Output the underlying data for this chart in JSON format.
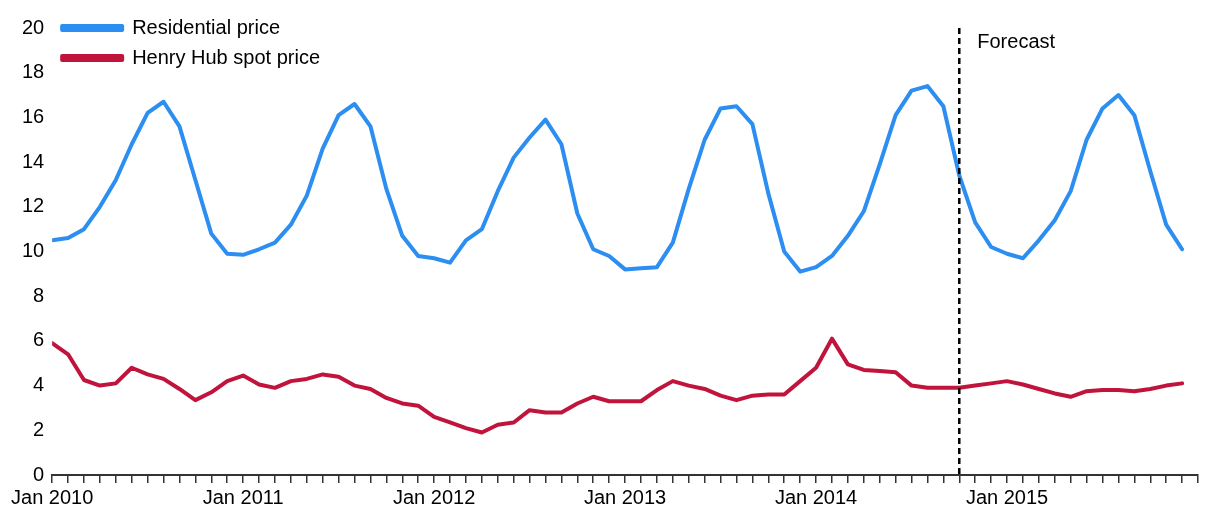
{
  "chart_data": {
    "type": "line",
    "x": [
      "2010-01",
      "2010-02",
      "2010-03",
      "2010-04",
      "2010-05",
      "2010-06",
      "2010-07",
      "2010-08",
      "2010-09",
      "2010-10",
      "2010-11",
      "2010-12",
      "2011-01",
      "2011-02",
      "2011-03",
      "2011-04",
      "2011-05",
      "2011-06",
      "2011-07",
      "2011-08",
      "2011-09",
      "2011-10",
      "2011-11",
      "2011-12",
      "2012-01",
      "2012-02",
      "2012-03",
      "2012-04",
      "2012-05",
      "2012-06",
      "2012-07",
      "2012-08",
      "2012-09",
      "2012-10",
      "2012-11",
      "2012-12",
      "2013-01",
      "2013-02",
      "2013-03",
      "2013-04",
      "2013-05",
      "2013-06",
      "2013-07",
      "2013-08",
      "2013-09",
      "2013-10",
      "2013-11",
      "2013-12",
      "2014-01",
      "2014-02",
      "2014-03",
      "2014-04",
      "2014-05",
      "2014-06",
      "2014-07",
      "2014-08",
      "2014-09",
      "2014-10",
      "2014-11",
      "2014-12",
      "2015-01",
      "2015-02",
      "2015-03",
      "2015-04",
      "2015-05",
      "2015-06",
      "2015-07",
      "2015-08",
      "2015-09",
      "2015-10",
      "2015-11",
      "2015-12"
    ],
    "series": [
      {
        "name": "Residential price",
        "color": "#2b8ef0",
        "values": [
          10.5,
          10.6,
          11.0,
          12.0,
          13.2,
          14.8,
          16.2,
          16.7,
          15.6,
          13.2,
          10.8,
          9.9,
          9.85,
          10.1,
          10.4,
          11.2,
          12.5,
          14.6,
          16.1,
          16.6,
          15.6,
          12.8,
          10.7,
          9.8,
          9.7,
          9.5,
          10.5,
          11.0,
          12.7,
          14.2,
          15.1,
          15.9,
          14.8,
          11.7,
          10.1,
          9.8,
          9.2,
          9.25,
          9.3,
          10.4,
          12.8,
          15.0,
          16.4,
          16.5,
          15.7,
          12.6,
          10.0,
          9.1,
          9.3,
          9.8,
          10.7,
          11.8,
          13.9,
          16.1,
          17.2,
          17.4,
          16.5,
          13.4,
          11.3,
          10.2,
          9.9,
          9.7,
          10.5,
          11.4,
          12.7,
          15.0,
          16.4,
          17.0,
          16.1,
          13.6,
          11.2,
          10.1
        ]
      },
      {
        "name": "Henry Hub spot price",
        "color": "#c0143c",
        "values": [
          5.9,
          5.4,
          4.25,
          4.0,
          4.1,
          4.8,
          4.5,
          4.3,
          3.85,
          3.35,
          3.7,
          4.2,
          4.45,
          4.05,
          3.9,
          4.2,
          4.3,
          4.5,
          4.4,
          4.0,
          3.85,
          3.45,
          3.2,
          3.1,
          2.6,
          2.35,
          2.1,
          1.9,
          2.25,
          2.35,
          2.9,
          2.8,
          2.8,
          3.2,
          3.5,
          3.3,
          3.3,
          3.3,
          3.8,
          4.2,
          4.0,
          3.85,
          3.55,
          3.35,
          3.55,
          3.6,
          3.6,
          4.2,
          4.8,
          6.1,
          4.95,
          4.7,
          4.65,
          4.6,
          4.0,
          3.9,
          3.9,
          3.9,
          4.0,
          4.1,
          4.2,
          4.05,
          3.85,
          3.65,
          3.5,
          3.75,
          3.8,
          3.8,
          3.75,
          3.85,
          4.0,
          4.1
        ]
      }
    ],
    "xlim": [
      "2010-01",
      "2016-01"
    ],
    "xticks": [
      {
        "value": "2010-01",
        "label": "Jan 2010"
      },
      {
        "value": "2010-02",
        "label": null
      },
      {
        "value": "2010-03",
        "label": null
      },
      {
        "value": "2010-04",
        "label": null
      },
      {
        "value": "2010-05",
        "label": null
      },
      {
        "value": "2010-06",
        "label": null
      },
      {
        "value": "2010-07",
        "label": null
      },
      {
        "value": "2010-08",
        "label": null
      },
      {
        "value": "2010-09",
        "label": null
      },
      {
        "value": "2010-10",
        "label": null
      },
      {
        "value": "2010-11",
        "label": null
      },
      {
        "value": "2010-12",
        "label": null
      },
      {
        "value": "2011-01",
        "label": "Jan 2011"
      },
      {
        "value": "2011-02",
        "label": null
      },
      {
        "value": "2011-03",
        "label": null
      },
      {
        "value": "2011-04",
        "label": null
      },
      {
        "value": "2011-05",
        "label": null
      },
      {
        "value": "2011-06",
        "label": null
      },
      {
        "value": "2011-07",
        "label": null
      },
      {
        "value": "2011-08",
        "label": null
      },
      {
        "value": "2011-09",
        "label": null
      },
      {
        "value": "2011-10",
        "label": null
      },
      {
        "value": "2011-11",
        "label": null
      },
      {
        "value": "2011-12",
        "label": null
      },
      {
        "value": "2012-01",
        "label": "Jan 2012"
      },
      {
        "value": "2012-02",
        "label": null
      },
      {
        "value": "2012-03",
        "label": null
      },
      {
        "value": "2012-04",
        "label": null
      },
      {
        "value": "2012-05",
        "label": null
      },
      {
        "value": "2012-06",
        "label": null
      },
      {
        "value": "2012-07",
        "label": null
      },
      {
        "value": "2012-08",
        "label": null
      },
      {
        "value": "2012-09",
        "label": null
      },
      {
        "value": "2012-10",
        "label": null
      },
      {
        "value": "2012-11",
        "label": null
      },
      {
        "value": "2012-12",
        "label": null
      },
      {
        "value": "2013-01",
        "label": "Jan 2013"
      },
      {
        "value": "2013-02",
        "label": null
      },
      {
        "value": "2013-03",
        "label": null
      },
      {
        "value": "2013-04",
        "label": null
      },
      {
        "value": "2013-05",
        "label": null
      },
      {
        "value": "2013-06",
        "label": null
      },
      {
        "value": "2013-07",
        "label": null
      },
      {
        "value": "2013-08",
        "label": null
      },
      {
        "value": "2013-09",
        "label": null
      },
      {
        "value": "2013-10",
        "label": null
      },
      {
        "value": "2013-11",
        "label": null
      },
      {
        "value": "2013-12",
        "label": null
      },
      {
        "value": "2014-01",
        "label": "Jan 2014"
      },
      {
        "value": "2014-02",
        "label": null
      },
      {
        "value": "2014-03",
        "label": null
      },
      {
        "value": "2014-04",
        "label": null
      },
      {
        "value": "2014-05",
        "label": null
      },
      {
        "value": "2014-06",
        "label": null
      },
      {
        "value": "2014-07",
        "label": null
      },
      {
        "value": "2014-08",
        "label": null
      },
      {
        "value": "2014-09",
        "label": null
      },
      {
        "value": "2014-10",
        "label": null
      },
      {
        "value": "2014-11",
        "label": null
      },
      {
        "value": "2014-12",
        "label": null
      },
      {
        "value": "2015-01",
        "label": "Jan 2015"
      },
      {
        "value": "2015-02",
        "label": null
      },
      {
        "value": "2015-03",
        "label": null
      },
      {
        "value": "2015-04",
        "label": null
      },
      {
        "value": "2015-05",
        "label": null
      },
      {
        "value": "2015-06",
        "label": null
      },
      {
        "value": "2015-07",
        "label": null
      },
      {
        "value": "2015-08",
        "label": null
      },
      {
        "value": "2015-09",
        "label": null
      },
      {
        "value": "2015-10",
        "label": null
      },
      {
        "value": "2015-11",
        "label": null
      },
      {
        "value": "2015-12",
        "label": null
      },
      {
        "value": "2016-01",
        "label": null
      }
    ],
    "ylim": [
      0,
      20
    ],
    "yticks": [
      0,
      2,
      4,
      6,
      8,
      10,
      12,
      14,
      16,
      18,
      20
    ],
    "ref_lines": [
      {
        "axis": "x",
        "value": "2014-10",
        "label": "Forecast",
        "color": "#000000",
        "line_style": "dashed"
      }
    ],
    "legend": "top left",
    "grid": false,
    "marker": "none",
    "line_style": "solid"
  }
}
